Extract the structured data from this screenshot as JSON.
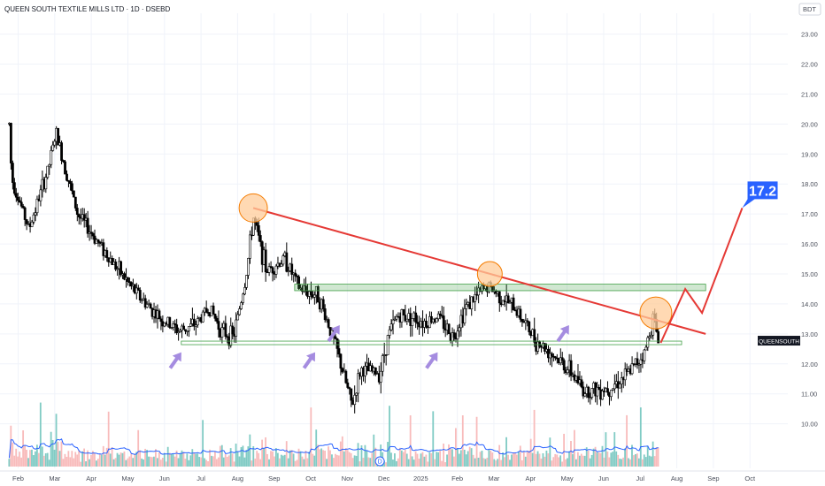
{
  "chart_title": "QUEEN SOUTH TEXTILE MILLS LTD · 1D · DSEBD",
  "currency": "BDT",
  "symbol_tag": "QUEENSOUTH",
  "target_label": "17.2",
  "colors": {
    "up": "#26a69a",
    "down": "#ef5350",
    "candle": "#000000",
    "volume_up": "#80cbc4",
    "volume_down": "#f8bbbb",
    "volume_ma": "#2962ff",
    "trendline": "#e53935",
    "support_zone": "#43a047",
    "circle_fill": "#ffcc99",
    "circle_stroke": "#f57c00",
    "arrow": "#a58ce0",
    "target_badge": "#2962ff"
  },
  "chart_data": {
    "type": "candlestick",
    "title": "QUEEN SOUTH TEXTILE MILLS LTD · 1D · DSEBD",
    "y_axis": {
      "unit": "BDT",
      "ylim": [
        9.4,
        23.4
      ],
      "ticks": [
        "10.00",
        "11.00",
        "12.00",
        "13.00",
        "14.00",
        "15.00",
        "16.00",
        "17.00",
        "18.00",
        "19.00",
        "20.00",
        "21.00",
        "22.00",
        "23.00"
      ]
    },
    "x_axis": {
      "ticks": [
        "Feb",
        "Mar",
        "Apr",
        "May",
        "Jun",
        "Jul",
        "Aug",
        "Sep",
        "Oct",
        "Nov",
        "Dec",
        "2025",
        "Feb",
        "Mar",
        "Apr",
        "May",
        "Jun",
        "Jul",
        "Aug",
        "Sep",
        "Oct"
      ]
    },
    "price_anchors": [
      {
        "t": "Jan-24",
        "close": 20.0
      },
      {
        "t": "Jan-26",
        "close": 18.2
      },
      {
        "t": "Feb-10",
        "close": 16.5
      },
      {
        "t": "Feb-26",
        "close": 18.5
      },
      {
        "t": "Mar-02",
        "close": 19.7
      },
      {
        "t": "Mar-20",
        "close": 17.0
      },
      {
        "t": "Apr-15",
        "close": 15.6
      },
      {
        "t": "May-05",
        "close": 14.5
      },
      {
        "t": "May-28",
        "close": 13.5
      },
      {
        "t": "Jun-13",
        "close": 13.1
      },
      {
        "t": "Jun-26",
        "close": 13.3
      },
      {
        "t": "Jul-08",
        "close": 13.9
      },
      {
        "t": "Jul-18",
        "close": 13.1
      },
      {
        "t": "Jul-28",
        "close": 12.9
      },
      {
        "t": "Aug-08",
        "close": 14.9
      },
      {
        "t": "Aug-14",
        "close": 16.9
      },
      {
        "t": "Aug-25",
        "close": 15.1
      },
      {
        "t": "Sep-10",
        "close": 15.5
      },
      {
        "t": "Sep-22",
        "close": 14.5
      },
      {
        "t": "Oct-07",
        "close": 14.3
      },
      {
        "t": "Oct-21",
        "close": 12.7
      },
      {
        "t": "Nov-05",
        "close": 10.6
      },
      {
        "t": "Nov-12",
        "close": 11.8
      },
      {
        "t": "Nov-28",
        "close": 11.7
      },
      {
        "t": "Dec-05",
        "close": 13.0
      },
      {
        "t": "Dec-12",
        "close": 13.6
      },
      {
        "t": "Dec-20",
        "close": 13.6
      },
      {
        "t": "Jan-05-25",
        "close": 13.4
      },
      {
        "t": "Jan-15-25",
        "close": 13.6
      },
      {
        "t": "Jan-28-25",
        "close": 12.9
      },
      {
        "t": "Feb-08-25",
        "close": 13.9
      },
      {
        "t": "Feb-26-25",
        "close": 14.6
      },
      {
        "t": "Mar-05-25",
        "close": 14.3
      },
      {
        "t": "Mar-20-25",
        "close": 13.8
      },
      {
        "t": "Apr-05-25",
        "close": 12.8
      },
      {
        "t": "Apr-20-25",
        "close": 12.3
      },
      {
        "t": "May-05-25",
        "close": 11.7
      },
      {
        "t": "May-15-25",
        "close": 11.1
      },
      {
        "t": "Jun-05-25",
        "close": 11.2
      },
      {
        "t": "Jun-20-25",
        "close": 11.6
      },
      {
        "t": "Jul-05-25",
        "close": 12.4
      },
      {
        "t": "Jul-12-25",
        "close": 13.6
      },
      {
        "t": "Jul-16-25",
        "close": 12.8
      }
    ],
    "annotations": {
      "support_level": 12.7,
      "resistance_zone": [
        14.5,
        14.6
      ],
      "trendline": {
        "from": {
          "t": "Aug-14",
          "price": 17.2
        },
        "to": {
          "t": "Aug-25-25",
          "price": 13.0
        }
      },
      "projection": [
        {
          "t": "Jul-18-25",
          "price": 12.7
        },
        {
          "t": "Aug-08-25",
          "price": 14.5
        },
        {
          "t": "Aug-22-25",
          "price": 13.7
        },
        {
          "t": "Sep-25-25",
          "price": 17.2
        }
      ],
      "target_price": 17.2
    }
  }
}
